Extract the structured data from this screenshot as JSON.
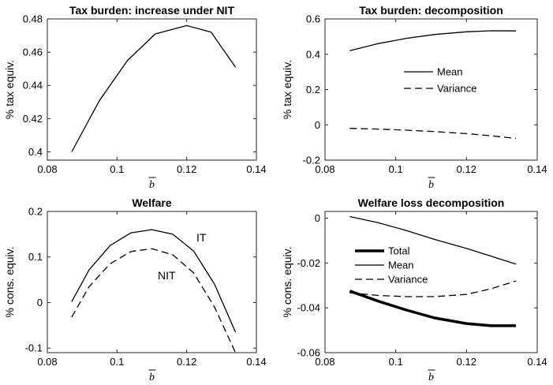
{
  "chart_data": [
    {
      "type": "line",
      "title": "Tax burden: increase under NIT",
      "xlabel": "b",
      "ylabel": "% tax equiv.",
      "xlim": [
        0.08,
        0.14
      ],
      "ylim": [
        0.395,
        0.48
      ],
      "xticks": [
        "0.08",
        "0.1",
        "0.12",
        "0.14"
      ],
      "yticks": [
        "0.4",
        "0.42",
        "0.44",
        "0.46",
        "0.48"
      ],
      "grid": false,
      "legend": [],
      "annotations": [],
      "series": [
        {
          "style": "solid",
          "width": "normal",
          "x": [
            0.087,
            0.095,
            0.103,
            0.111,
            0.12,
            0.127,
            0.134
          ],
          "y": [
            0.4,
            0.431,
            0.455,
            0.471,
            0.476,
            0.472,
            0.451
          ]
        }
      ]
    },
    {
      "type": "line",
      "title": "Tax burden: decomposition",
      "xlabel": "b",
      "ylabel": "% tax equiv.",
      "xlim": [
        0.08,
        0.14
      ],
      "ylim": [
        -0.2,
        0.6
      ],
      "xticks": [
        "0.08",
        "0.1",
        "0.12",
        "0.14"
      ],
      "yticks": [
        "-0.2",
        "0",
        "0.2",
        "0.4",
        "0.6"
      ],
      "grid": false,
      "legend": [
        {
          "label": "Mean",
          "style": "solid",
          "width": "normal"
        },
        {
          "label": "Variance",
          "style": "dashed",
          "width": "normal"
        }
      ],
      "annotations": [],
      "series": [
        {
          "name": "Mean",
          "style": "solid",
          "width": "normal",
          "x": [
            0.087,
            0.095,
            0.103,
            0.111,
            0.12,
            0.127,
            0.134
          ],
          "y": [
            0.42,
            0.46,
            0.49,
            0.512,
            0.527,
            0.533,
            0.532
          ]
        },
        {
          "name": "Variance",
          "style": "dashed",
          "width": "normal",
          "x": [
            0.087,
            0.095,
            0.103,
            0.111,
            0.12,
            0.127,
            0.134
          ],
          "y": [
            -0.02,
            -0.024,
            -0.03,
            -0.038,
            -0.05,
            -0.062,
            -0.077
          ]
        }
      ]
    },
    {
      "type": "line",
      "title": "Welfare",
      "xlabel": "b",
      "ylabel": "% cons. equiv.",
      "xlim": [
        0.08,
        0.14
      ],
      "ylim": [
        -0.11,
        0.2
      ],
      "xticks": [
        "0.08",
        "0.1",
        "0.12",
        "0.14"
      ],
      "yticks": [
        "-0.1",
        "0",
        "0.1",
        "0.2"
      ],
      "grid": false,
      "legend": [],
      "annotations": [
        "IT",
        "NIT"
      ],
      "series": [
        {
          "name": "IT",
          "style": "solid",
          "width": "normal",
          "x": [
            0.087,
            0.092,
            0.098,
            0.104,
            0.11,
            0.116,
            0.122,
            0.128,
            0.134
          ],
          "y": [
            0.002,
            0.072,
            0.125,
            0.153,
            0.16,
            0.15,
            0.113,
            0.04,
            -0.065
          ]
        },
        {
          "name": "NIT",
          "style": "dashed",
          "width": "normal",
          "x": [
            0.087,
            0.092,
            0.098,
            0.104,
            0.11,
            0.116,
            0.122,
            0.128,
            0.134
          ],
          "y": [
            -0.032,
            0.035,
            0.085,
            0.112,
            0.118,
            0.105,
            0.065,
            -0.01,
            -0.11
          ]
        }
      ]
    },
    {
      "type": "line",
      "title": "Welfare loss decomposition",
      "xlabel": "b",
      "ylabel": "% cons. equiv.",
      "xlim": [
        0.08,
        0.14
      ],
      "ylim": [
        -0.06,
        0.003
      ],
      "xticks": [
        "0.08",
        "0.1",
        "0.12",
        "0.14"
      ],
      "yticks": [
        "-0.06",
        "-0.04",
        "-0.02",
        "0"
      ],
      "grid": false,
      "legend": [
        {
          "label": "Total",
          "style": "solid",
          "width": "thick"
        },
        {
          "label": "Mean",
          "style": "solid",
          "width": "normal"
        },
        {
          "label": "Variance",
          "style": "dashed",
          "width": "normal"
        }
      ],
      "annotations": [],
      "series": [
        {
          "name": "Total",
          "style": "solid",
          "width": "thick",
          "x": [
            0.087,
            0.095,
            0.103,
            0.111,
            0.12,
            0.127,
            0.134
          ],
          "y": [
            -0.0325,
            -0.037,
            -0.041,
            -0.0445,
            -0.047,
            -0.048,
            -0.048
          ]
        },
        {
          "name": "Mean",
          "style": "solid",
          "width": "normal",
          "x": [
            0.087,
            0.095,
            0.103,
            0.111,
            0.12,
            0.127,
            0.134
          ],
          "y": [
            0.0007,
            -0.002,
            -0.0055,
            -0.0095,
            -0.0135,
            -0.017,
            -0.0205
          ]
        },
        {
          "name": "Variance",
          "style": "dashed",
          "width": "normal",
          "x": [
            0.087,
            0.095,
            0.103,
            0.111,
            0.12,
            0.127,
            0.134
          ],
          "y": [
            -0.0333,
            -0.0345,
            -0.035,
            -0.035,
            -0.034,
            -0.0315,
            -0.028
          ]
        }
      ]
    }
  ]
}
